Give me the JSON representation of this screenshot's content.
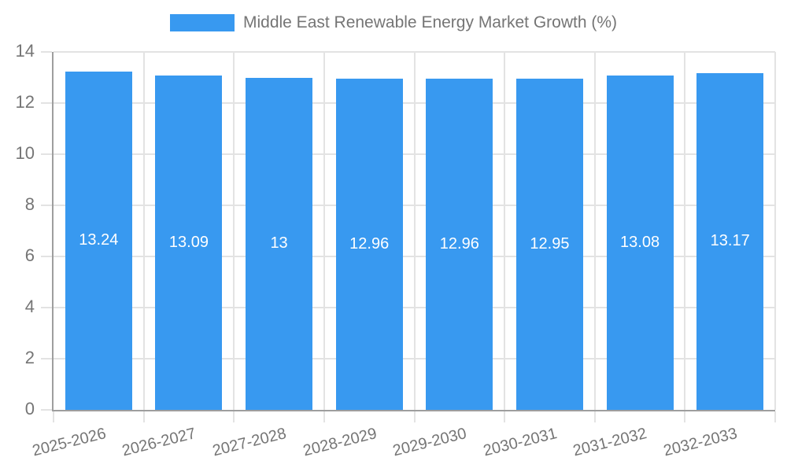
{
  "legend": {
    "label": "Middle East Renewable Energy Market Growth (%)"
  },
  "colors": {
    "bar": "#3899f0",
    "axis": "#9e9e9e",
    "grid": "#e3e3e3",
    "tick_text": "#757575",
    "bar_label_text": "#ffffff",
    "legend_text": "#757575"
  },
  "chart_data": {
    "type": "bar",
    "title": "Middle East Renewable Energy Market Growth (%)",
    "categories": [
      "2025-2026",
      "2026-2027",
      "2027-2028",
      "2028-2029",
      "2029-2030",
      "2030-2031",
      "2031-2032",
      "2032-2033"
    ],
    "values": [
      13.24,
      13.09,
      13,
      12.96,
      12.96,
      12.95,
      13.08,
      13.17
    ],
    "value_labels": [
      "13.24",
      "13.09",
      "13",
      "12.96",
      "12.96",
      "12.95",
      "13.08",
      "13.17"
    ],
    "xlabel": "",
    "ylabel": "",
    "ylim": [
      0,
      14
    ],
    "yticks": [
      0,
      2,
      4,
      6,
      8,
      10,
      12,
      14
    ],
    "grid": true,
    "legend_position": "top",
    "bar_label_position": "center",
    "x_label_rotation_deg": -14
  }
}
